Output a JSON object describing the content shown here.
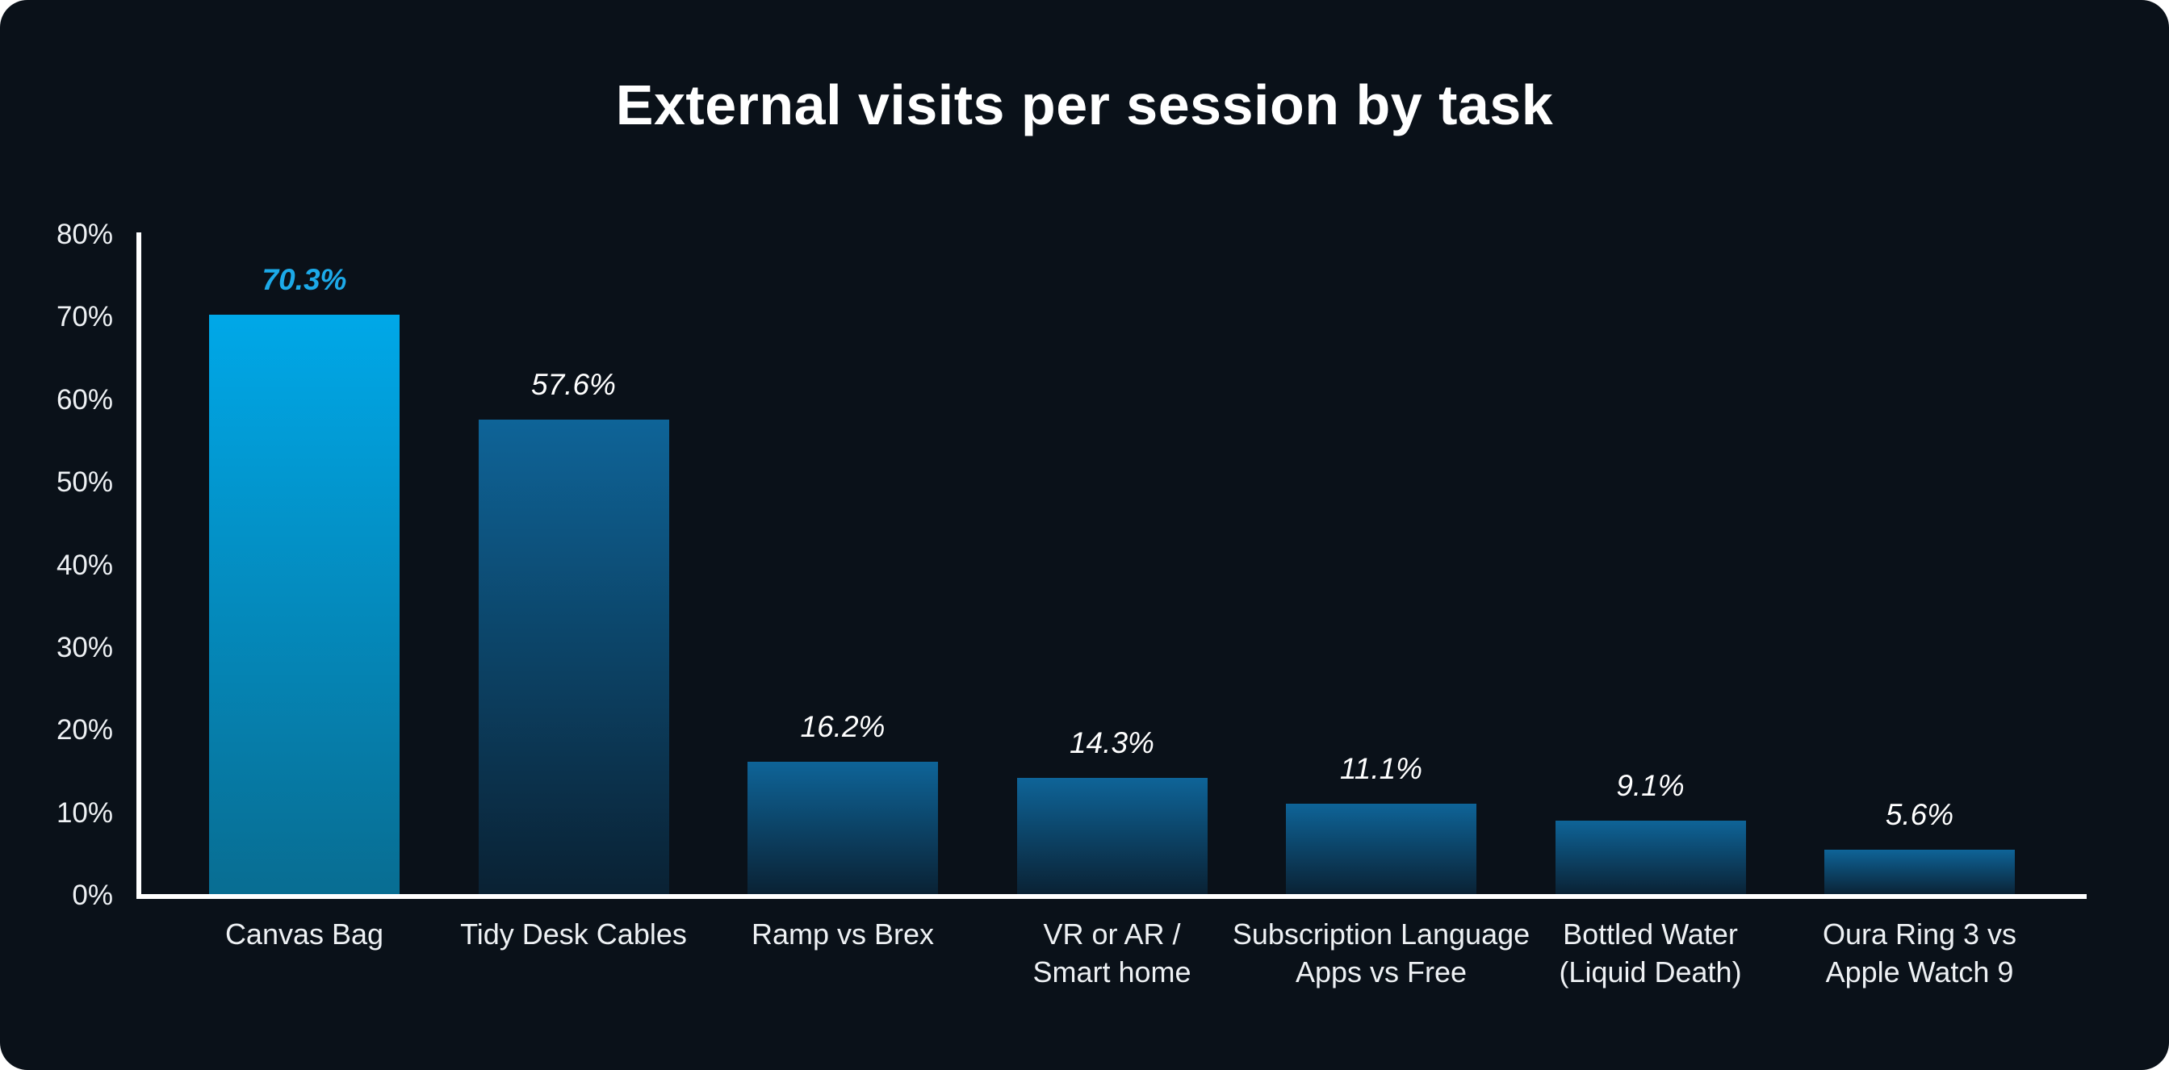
{
  "card": {
    "background": "#0a1119"
  },
  "chart_data": {
    "type": "bar",
    "title": "External visits per session by task",
    "categories": [
      "Canvas Bag",
      "Tidy Desk Cables",
      "Ramp vs Brex",
      "VR or AR / Smart home",
      "Subscription Language Apps vs Free",
      "Bottled Water (Liquid Death)",
      "Oura Ring 3 vs Apple Watch 9"
    ],
    "category_lines": [
      [
        "Canvas Bag"
      ],
      [
        "Tidy Desk Cables"
      ],
      [
        "Ramp vs Brex"
      ],
      [
        "VR or AR /",
        "Smart home"
      ],
      [
        "Subscription Language",
        "Apps vs Free"
      ],
      [
        "Bottled Water",
        "(Liquid Death)"
      ],
      [
        "Oura Ring 3 vs",
        "Apple Watch 9"
      ]
    ],
    "values": [
      70.3,
      57.6,
      16.2,
      14.3,
      11.1,
      9.1,
      5.6
    ],
    "value_labels": [
      "70.3%",
      "57.6%",
      "16.2%",
      "14.3%",
      "11.1%",
      "9.1%",
      "5.6%"
    ],
    "highlight_index": 0,
    "y_ticks": [
      "0%",
      "10%",
      "20%",
      "30%",
      "40%",
      "50%",
      "60%",
      "70%",
      "80%"
    ],
    "ylim": [
      0,
      80
    ],
    "xlabel": "",
    "ylabel": "",
    "grid": false,
    "legend": null,
    "colors": {
      "background": "#0a1119",
      "axis": "#ffffff",
      "tick_text": "#eef1f4",
      "category_text": "#eef1f4",
      "value_text": "#ffffff",
      "highlight_value_text": "#1caae9",
      "bar_top": "#0e6498",
      "bar_bottom": "#0a2133",
      "highlight_bar_top": "#00a8e8",
      "highlight_bar_bottom": "#086d92"
    }
  }
}
